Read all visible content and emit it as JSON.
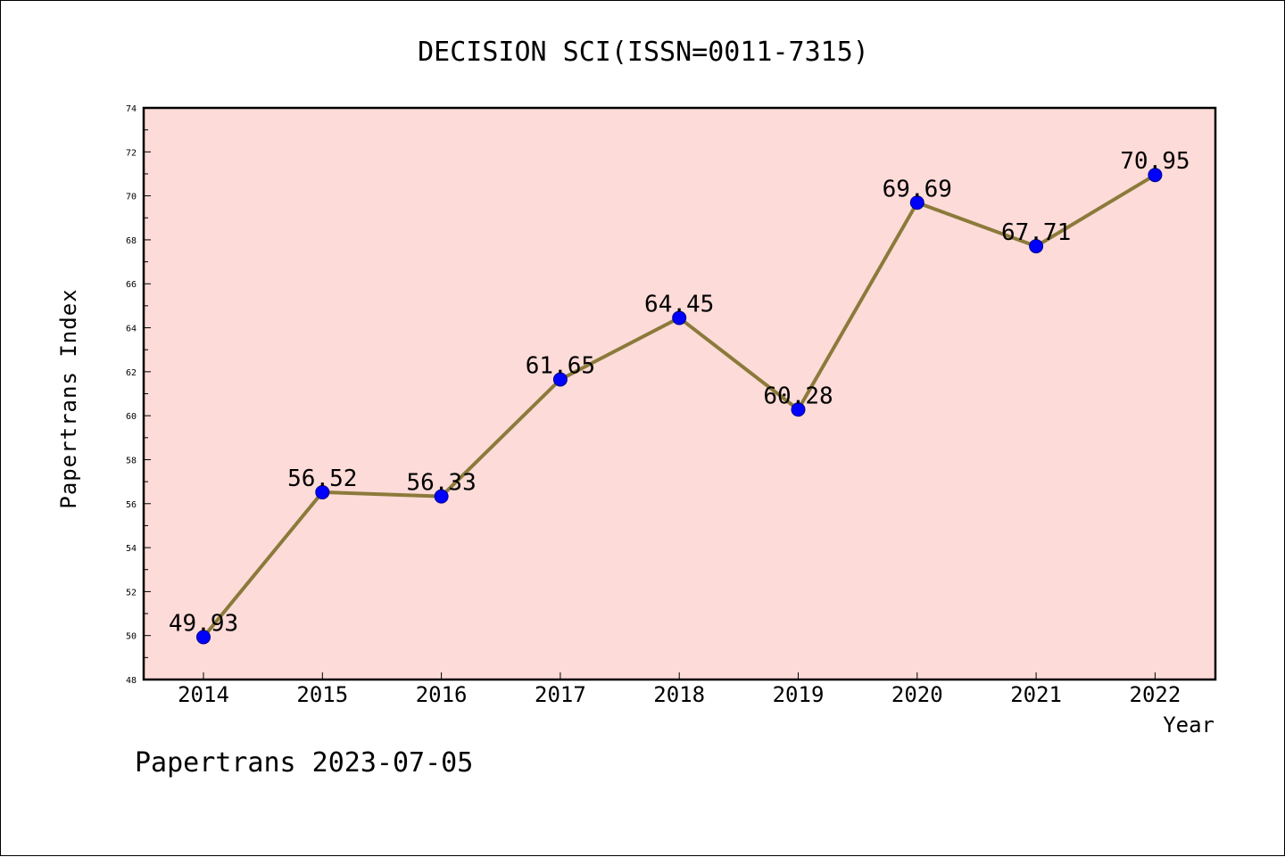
{
  "footer": "Papertrans 2023-07-05",
  "chart_data": {
    "type": "line",
    "title": "DECISION SCI(ISSN=0011-7315)",
    "xlabel": "Year",
    "ylabel": "Papertrans Index",
    "categories": [
      "2014",
      "2015",
      "2016",
      "2017",
      "2018",
      "2019",
      "2020",
      "2021",
      "2022"
    ],
    "series": [
      {
        "values": [
          49.93,
          56.52,
          56.33,
          61.65,
          64.45,
          60.28,
          69.69,
          67.71,
          70.95
        ]
      }
    ],
    "data_labels": [
      "49.93",
      "56.52",
      "56.33",
      "61.65",
      "64.45",
      "60.28",
      "69.69",
      "67.71",
      "70.95"
    ],
    "ylim": [
      48,
      74
    ],
    "yticks": [
      "48",
      "50",
      "52",
      "54",
      "56",
      "58",
      "60",
      "62",
      "64",
      "66",
      "68",
      "70",
      "72",
      "74"
    ],
    "grid": false,
    "legend": "none",
    "colors": {
      "plot_background": "#fddbd8",
      "line": "#8b7a3a",
      "marker": "#0000ff",
      "marker_edge": "#00008b"
    }
  }
}
